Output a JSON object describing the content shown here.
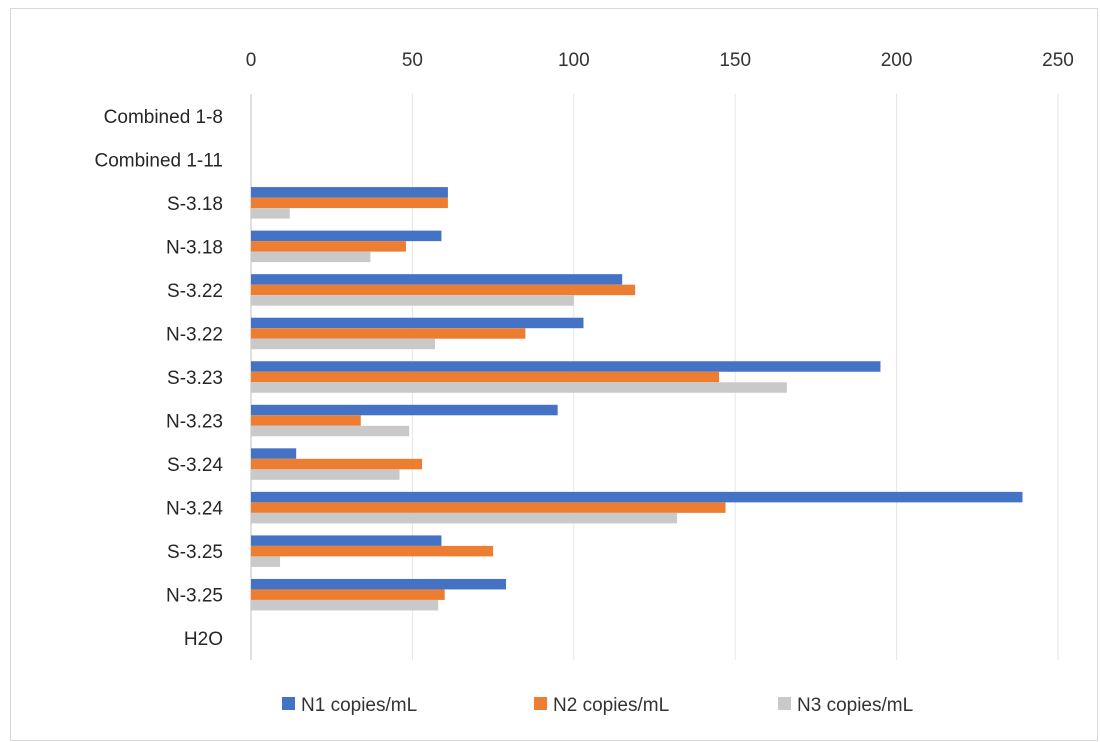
{
  "chart_data": {
    "type": "bar",
    "orientation": "horizontal",
    "title": "",
    "xlabel": "",
    "ylabel": "",
    "xlim": [
      0,
      250
    ],
    "x_ticks": [
      0,
      50,
      100,
      150,
      200,
      250
    ],
    "x_axis_position": "top",
    "grid": true,
    "legend_position": "bottom",
    "categories": [
      "Combined 1-8",
      "Combined 1-11",
      "S-3.18",
      "N-3.18",
      "S-3.22",
      "N-3.22",
      "S-3.23",
      "N-3.23",
      "S-3.24",
      "N-3.24",
      "S-3.25",
      "N-3.25",
      "H2O"
    ],
    "series": [
      {
        "name": "N1 copies/mL",
        "color": "#4472c4",
        "values": [
          0,
          0,
          61,
          59,
          115,
          103,
          195,
          95,
          14,
          239,
          59,
          79,
          0
        ]
      },
      {
        "name": "N2 copies/mL",
        "color": "#ed7d31",
        "values": [
          0,
          0,
          61,
          48,
          119,
          85,
          145,
          34,
          53,
          147,
          75,
          60,
          0
        ]
      },
      {
        "name": "N3 copies/mL",
        "color": "#c9c9c9",
        "values": [
          0,
          0,
          12,
          37,
          100,
          57,
          166,
          49,
          46,
          132,
          9,
          58,
          0
        ]
      }
    ]
  }
}
